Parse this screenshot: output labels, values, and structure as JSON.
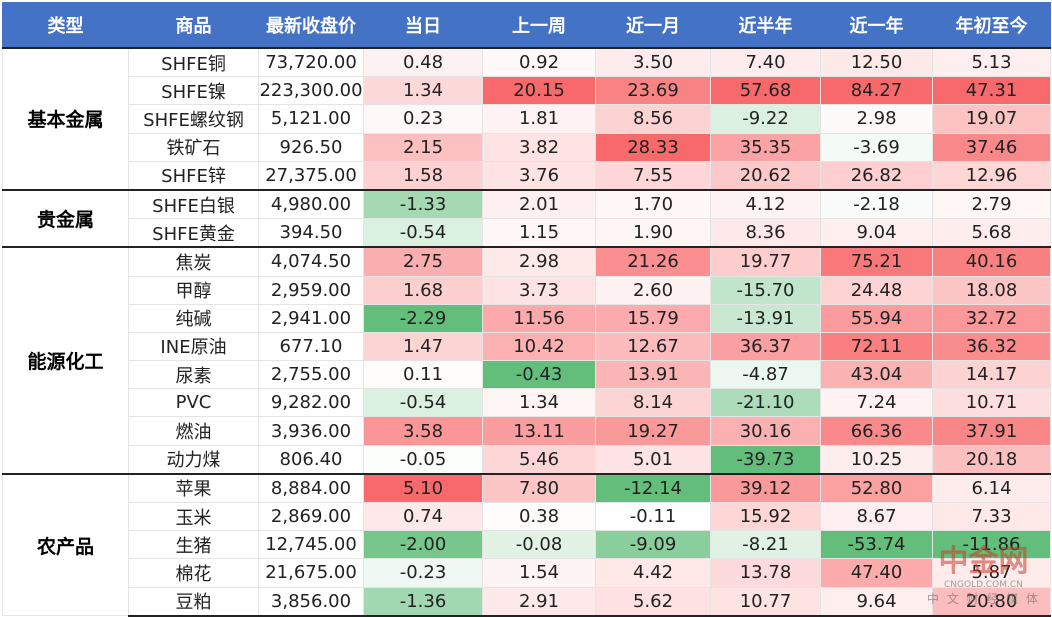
{
  "table": {
    "header": [
      "类型",
      "商品",
      "最新收盘价",
      "当日",
      "上一周",
      "近一月",
      "近半年",
      "近一年",
      "年初至今"
    ],
    "groups": [
      {
        "name": "基本金属",
        "rows": [
          [
            "SHFE铜",
            "73,720.00",
            "0.48",
            "0.92",
            "3.50",
            "7.40",
            "12.50",
            "5.13"
          ],
          [
            "SHFE镍",
            "223,300.00",
            "1.34",
            "20.15",
            "23.69",
            "57.68",
            "84.27",
            "47.31"
          ],
          [
            "SHFE螺纹钢",
            "5,121.00",
            "0.23",
            "1.81",
            "8.56",
            "-9.22",
            "2.98",
            "19.07"
          ],
          [
            "铁矿石",
            "926.50",
            "2.15",
            "3.82",
            "28.33",
            "35.35",
            "-3.69",
            "37.46"
          ],
          [
            "SHFE锌",
            "27,375.00",
            "1.58",
            "3.76",
            "7.55",
            "20.62",
            "26.82",
            "12.96"
          ]
        ]
      },
      {
        "name": "贵金属",
        "rows": [
          [
            "SHFE白银",
            "4,980.00",
            "-1.33",
            "2.01",
            "1.70",
            "4.12",
            "-2.18",
            "2.79"
          ],
          [
            "SHFE黄金",
            "394.50",
            "-0.54",
            "1.15",
            "1.90",
            "8.36",
            "9.04",
            "5.68"
          ]
        ]
      },
      {
        "name": "能源化工",
        "rows": [
          [
            "焦炭",
            "4,074.50",
            "2.75",
            "2.98",
            "21.26",
            "19.77",
            "75.21",
            "40.16"
          ],
          [
            "甲醇",
            "2,959.00",
            "1.68",
            "3.73",
            "2.60",
            "-15.70",
            "24.48",
            "18.08"
          ],
          [
            "纯碱",
            "2,941.00",
            "-2.29",
            "11.56",
            "15.79",
            "-13.91",
            "55.94",
            "32.72"
          ],
          [
            "INE原油",
            "677.10",
            "1.47",
            "10.42",
            "12.67",
            "36.37",
            "72.11",
            "36.32"
          ],
          [
            "尿素",
            "2,755.00",
            "0.11",
            "-0.43",
            "13.91",
            "-4.87",
            "43.04",
            "14.17"
          ],
          [
            "PVC",
            "9,282.00",
            "-0.54",
            "1.34",
            "8.14",
            "-21.10",
            "7.24",
            "10.71"
          ],
          [
            "燃油",
            "3,936.00",
            "3.58",
            "13.11",
            "19.27",
            "30.16",
            "66.36",
            "37.91"
          ],
          [
            "动力煤",
            "806.40",
            "-0.05",
            "5.46",
            "5.01",
            "-39.73",
            "10.25",
            "20.18"
          ]
        ]
      },
      {
        "name": "农产品",
        "rows": [
          [
            "苹果",
            "8,884.00",
            "5.10",
            "7.80",
            "-12.14",
            "39.12",
            "52.80",
            "6.14"
          ],
          [
            "玉米",
            "2,869.00",
            "0.74",
            "0.38",
            "-0.11",
            "15.92",
            "8.67",
            "7.33"
          ],
          [
            "生猪",
            "12,745.00",
            "-2.00",
            "-0.08",
            "-9.09",
            "-8.21",
            "-53.74",
            "-11.86"
          ],
          [
            "棉花",
            "21,675.00",
            "-0.23",
            "1.54",
            "4.42",
            "13.78",
            "47.40",
            "5.87"
          ],
          [
            "豆粕",
            "3,856.00",
            "-1.36",
            "2.91",
            "5.62",
            "10.77",
            "9.64",
            "20.80"
          ]
        ]
      }
    ]
  },
  "watermark": {
    "name": "中金网",
    "url": "CNGOLD.COM.CN",
    "tagline": "中 文 财 经 媒 体"
  }
}
